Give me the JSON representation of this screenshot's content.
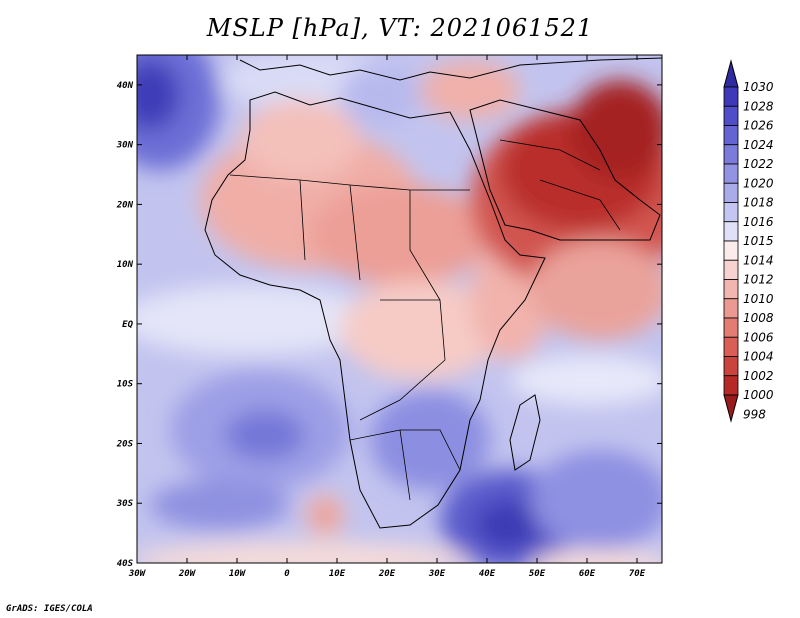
{
  "title": "MSLP [hPa], VT: 2021061521",
  "credit": "GrADS: IGES/COLA",
  "variable": "MSLP",
  "units": "hPa",
  "valid_time": "2021061521",
  "lon_ticks": [
    "30W",
    "20W",
    "10W",
    "0",
    "10E",
    "20E",
    "30E",
    "40E",
    "50E",
    "60E",
    "70E"
  ],
  "lat_ticks": [
    "40N",
    "30N",
    "20N",
    "10N",
    "EQ",
    "10S",
    "20S",
    "30S",
    "40S"
  ],
  "extent": {
    "lon_min": -30,
    "lon_max": 75,
    "lat_min": -40,
    "lat_max": 45
  },
  "colorbar": {
    "labels": [
      "1030",
      "1028",
      "1026",
      "1024",
      "1022",
      "1020",
      "1018",
      "1016",
      "1015",
      "1014",
      "1012",
      "1010",
      "1008",
      "1006",
      "1004",
      "1002",
      "1000",
      "998"
    ],
    "colors": [
      "#2f2a9f",
      "#3d39b8",
      "#4f4ec8",
      "#6464d2",
      "#7a7bdb",
      "#9294e3",
      "#aaacea",
      "#c4c6f1",
      "#e0e1f8",
      "#fbeceb",
      "#f8d2d0",
      "#f2b6b1",
      "#eb9991",
      "#e37c73",
      "#d85e56",
      "#cb433d",
      "#b52a27",
      "#991c1c"
    ]
  }
}
